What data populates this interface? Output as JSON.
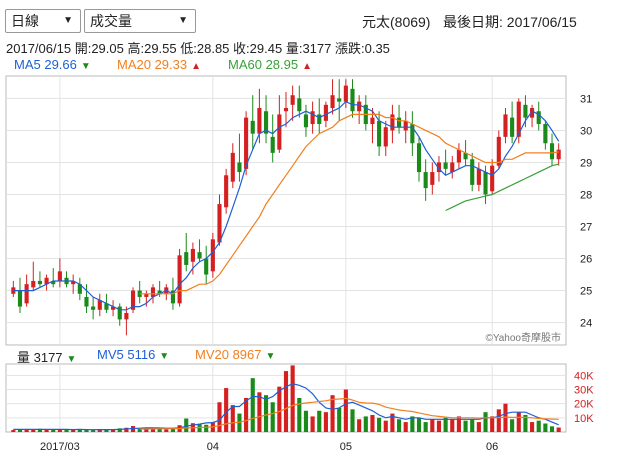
{
  "controls": {
    "period_select": {
      "value": "日線"
    },
    "indicator_select": {
      "value": "成交量"
    }
  },
  "header": {
    "stock": "元太(8069)",
    "last_date_label": "最後日期: 2017/06/15"
  },
  "quote": {
    "date": "2017/06/15",
    "open": "開:29.05",
    "high": "高:29.55",
    "low": "低:28.85",
    "close": "收:29.45",
    "volume": "量:3177",
    "change": "漲跌:0.35"
  },
  "ma_legend": {
    "ma5": {
      "text": "MA5 29.66",
      "arrow": "▼",
      "color": "#1f5fd6",
      "arrow_color": "#1a8a1a"
    },
    "ma20": {
      "text": "MA20 29.33",
      "arrow": "▲",
      "color": "#f08020",
      "arrow_color": "#d42020"
    },
    "ma60": {
      "text": "MA60 28.95",
      "arrow": "▲",
      "color": "#3aa03a",
      "arrow_color": "#d42020"
    }
  },
  "vol_legend": {
    "vol": {
      "text": "量 3177",
      "arrow": "▼",
      "color": "#222",
      "arrow_color": "#1a8a1a"
    },
    "mv5": {
      "text": "MV5 5116",
      "arrow": "▼",
      "color": "#1f5fd6",
      "arrow_color": "#1a8a1a"
    },
    "mv20": {
      "text": "MV20 8967",
      "arrow": "▼",
      "color": "#f08020",
      "arrow_color": "#1a8a1a"
    }
  },
  "watermark": "©Yahoo奇摩股市",
  "colors": {
    "up": "#d42020",
    "down": "#1a8a1a",
    "ma5": "#1f5fd6",
    "ma20": "#f08020",
    "ma60": "#3aa03a",
    "grid": "#e3e3e3",
    "vol_axis": "#d42020"
  },
  "chart_data": {
    "type": "candlestick",
    "price_axis": {
      "ticks": [
        24,
        25,
        26,
        27,
        28,
        29,
        30,
        31
      ],
      "ylim": [
        23.3,
        31.7
      ]
    },
    "volume_axis": {
      "ticks": [
        "10K",
        "20K",
        "30K",
        "40K"
      ],
      "values": [
        10000,
        20000,
        30000,
        40000
      ],
      "ylim": [
        0,
        48000
      ]
    },
    "x_tick_labels": [
      {
        "index": 7,
        "label": "2017/03"
      },
      {
        "index": 30,
        "label": "04"
      },
      {
        "index": 50,
        "label": "05"
      },
      {
        "index": 72,
        "label": "06"
      }
    ],
    "candles": [
      [
        24.9,
        25.3,
        24.8,
        25.1
      ],
      [
        25.0,
        25.4,
        24.3,
        24.5
      ],
      [
        24.6,
        25.5,
        24.5,
        25.2
      ],
      [
        25.1,
        25.9,
        25.0,
        25.3
      ],
      [
        25.3,
        25.6,
        25.1,
        25.2
      ],
      [
        25.2,
        25.5,
        25.0,
        25.4
      ],
      [
        25.3,
        25.7,
        25.1,
        25.2
      ],
      [
        25.3,
        26.0,
        25.1,
        25.6
      ],
      [
        25.4,
        25.6,
        25.1,
        25.2
      ],
      [
        25.2,
        25.5,
        24.9,
        25.3
      ],
      [
        25.2,
        25.4,
        24.7,
        24.9
      ],
      [
        24.8,
        25.2,
        24.3,
        24.5
      ],
      [
        24.5,
        24.8,
        24.1,
        24.4
      ],
      [
        24.4,
        24.9,
        24.2,
        24.7
      ],
      [
        24.6,
        24.9,
        24.3,
        24.4
      ],
      [
        24.4,
        24.7,
        24.2,
        24.5
      ],
      [
        24.5,
        24.6,
        23.9,
        24.1
      ],
      [
        24.1,
        24.5,
        23.6,
        24.3
      ],
      [
        24.4,
        25.1,
        24.3,
        25.0
      ],
      [
        25.0,
        25.3,
        24.6,
        24.8
      ],
      [
        24.8,
        25.0,
        24.5,
        24.9
      ],
      [
        24.8,
        25.2,
        24.6,
        25.1
      ],
      [
        25.0,
        25.3,
        24.8,
        24.9
      ],
      [
        24.9,
        25.2,
        24.7,
        25.1
      ],
      [
        25.0,
        25.4,
        24.4,
        24.6
      ],
      [
        24.6,
        26.3,
        24.5,
        26.1
      ],
      [
        26.2,
        26.8,
        25.6,
        25.8
      ],
      [
        25.9,
        26.5,
        25.5,
        26.3
      ],
      [
        26.2,
        26.6,
        25.9,
        26.0
      ],
      [
        26.0,
        26.4,
        25.2,
        25.5
      ],
      [
        25.6,
        26.8,
        25.4,
        26.6
      ],
      [
        26.5,
        28.0,
        26.4,
        27.7
      ],
      [
        27.6,
        28.8,
        27.4,
        28.6
      ],
      [
        28.4,
        29.6,
        28.2,
        29.3
      ],
      [
        29.0,
        29.9,
        28.4,
        28.7
      ],
      [
        28.8,
        30.6,
        28.6,
        30.4
      ],
      [
        30.3,
        31.1,
        29.4,
        29.9
      ],
      [
        29.9,
        31.3,
        29.6,
        30.7
      ],
      [
        30.6,
        31.1,
        29.6,
        29.9
      ],
      [
        29.8,
        30.5,
        29.0,
        29.3
      ],
      [
        29.4,
        31.1,
        29.3,
        30.5
      ],
      [
        30.6,
        31.2,
        30.1,
        30.7
      ],
      [
        30.8,
        31.4,
        30.3,
        31.1
      ],
      [
        31.0,
        31.4,
        30.4,
        30.6
      ],
      [
        30.5,
        30.8,
        29.8,
        30.1
      ],
      [
        30.2,
        30.9,
        29.9,
        30.6
      ],
      [
        30.5,
        31.0,
        29.9,
        30.2
      ],
      [
        30.3,
        30.9,
        30.1,
        30.8
      ],
      [
        30.7,
        31.6,
        30.5,
        31.1
      ],
      [
        31.0,
        31.6,
        30.3,
        30.9
      ],
      [
        30.9,
        31.6,
        30.7,
        31.4
      ],
      [
        31.3,
        31.6,
        30.4,
        30.6
      ],
      [
        30.6,
        31.1,
        30.2,
        30.9
      ],
      [
        30.8,
        31.1,
        30.0,
        30.2
      ],
      [
        30.2,
        30.7,
        29.6,
        30.4
      ],
      [
        30.3,
        30.6,
        29.2,
        29.5
      ],
      [
        29.5,
        30.3,
        29.2,
        30.1
      ],
      [
        30.0,
        30.8,
        29.6,
        30.5
      ],
      [
        30.4,
        30.8,
        29.9,
        30.1
      ],
      [
        30.0,
        30.6,
        29.6,
        30.3
      ],
      [
        30.2,
        30.6,
        29.2,
        29.6
      ],
      [
        29.6,
        29.8,
        28.4,
        28.7
      ],
      [
        28.7,
        29.1,
        27.8,
        28.2
      ],
      [
        28.3,
        29.0,
        28.0,
        28.7
      ],
      [
        28.7,
        29.2,
        28.4,
        29.0
      ],
      [
        29.0,
        29.4,
        28.6,
        28.8
      ],
      [
        28.7,
        29.2,
        28.5,
        29.0
      ],
      [
        29.0,
        29.6,
        28.8,
        29.4
      ],
      [
        29.3,
        29.7,
        28.9,
        29.1
      ],
      [
        29.1,
        29.3,
        28.1,
        28.3
      ],
      [
        28.3,
        29.0,
        28.1,
        28.8
      ],
      [
        28.7,
        28.9,
        27.7,
        28.0
      ],
      [
        28.1,
        29.1,
        28.0,
        28.9
      ],
      [
        28.9,
        30.0,
        28.8,
        29.8
      ],
      [
        29.8,
        30.7,
        29.6,
        30.5
      ],
      [
        30.4,
        30.9,
        29.6,
        29.8
      ],
      [
        29.8,
        31.0,
        29.6,
        30.9
      ],
      [
        30.8,
        31.1,
        30.1,
        30.4
      ],
      [
        30.4,
        30.8,
        30.1,
        30.7
      ],
      [
        30.6,
        30.9,
        30.0,
        30.2
      ],
      [
        30.2,
        30.3,
        29.4,
        29.6
      ],
      [
        29.6,
        29.9,
        28.9,
        29.1
      ],
      [
        29.1,
        29.6,
        28.9,
        29.4
      ]
    ],
    "volumes": [
      1400,
      2100,
      1900,
      1700,
      2300,
      1500,
      1900,
      1800,
      1700,
      1600,
      1900,
      1500,
      1400,
      2100,
      1800,
      1600,
      2600,
      3000,
      4200,
      2300,
      2400,
      3000,
      2100,
      1900,
      2300,
      4800,
      9500,
      6200,
      5400,
      5100,
      7000,
      21000,
      31000,
      19000,
      13000,
      24000,
      38000,
      28000,
      26000,
      21000,
      32000,
      43000,
      47000,
      24000,
      15000,
      11000,
      15000,
      14000,
      26000,
      17000,
      30000,
      16000,
      9000,
      11000,
      12000,
      10000,
      8000,
      13000,
      9000,
      7000,
      11000,
      10000,
      7000,
      9000,
      8000,
      10000,
      9000,
      11000,
      8000,
      9000,
      7000,
      14000,
      11000,
      16000,
      20000,
      9000,
      14000,
      12000,
      7000,
      8000,
      6000,
      4000,
      3177
    ],
    "series": [
      {
        "name": "MA5",
        "values": [
          25.0,
          25.0,
          25.0,
          25.0,
          25.1,
          25.2,
          25.3,
          25.3,
          25.3,
          25.3,
          25.2,
          25.0,
          24.8,
          24.7,
          24.6,
          24.5,
          24.4,
          24.4,
          24.5,
          24.5,
          24.6,
          24.8,
          24.9,
          25.0,
          24.9,
          25.2,
          25.4,
          25.7,
          25.9,
          26.0,
          26.2,
          26.5,
          27.0,
          27.6,
          28.2,
          28.9,
          29.4,
          29.9,
          30.0,
          29.9,
          30.1,
          30.2,
          30.4,
          30.5,
          30.6,
          30.5,
          30.4,
          30.5,
          30.6,
          30.7,
          30.9,
          30.8,
          30.8,
          30.7,
          30.6,
          30.3,
          30.2,
          30.1,
          30.1,
          30.1,
          30.1,
          29.8,
          29.4,
          29.1,
          28.8,
          28.6,
          28.7,
          28.8,
          28.9,
          28.9,
          28.8,
          28.7,
          28.6,
          28.8,
          29.2,
          29.5,
          29.9,
          30.3,
          30.6,
          30.5,
          30.3,
          30.0,
          29.66
        ]
      },
      {
        "name": "MA20",
        "values": [
          null,
          null,
          null,
          null,
          null,
          null,
          null,
          null,
          null,
          null,
          null,
          null,
          null,
          null,
          null,
          null,
          null,
          null,
          null,
          24.9,
          24.9,
          24.9,
          24.9,
          24.9,
          24.9,
          25.0,
          25.0,
          25.1,
          25.2,
          25.2,
          25.3,
          25.5,
          25.8,
          26.1,
          26.4,
          26.7,
          27.0,
          27.3,
          27.7,
          28.0,
          28.3,
          28.6,
          28.9,
          29.2,
          29.5,
          29.7,
          29.9,
          30.0,
          30.1,
          30.3,
          30.4,
          30.5,
          30.5,
          30.5,
          30.5,
          30.5,
          30.4,
          30.4,
          30.3,
          30.3,
          30.2,
          30.1,
          30.0,
          29.9,
          29.8,
          29.6,
          29.5,
          29.4,
          29.3,
          29.2,
          29.1,
          29.0,
          29.0,
          29.0,
          29.1,
          29.1,
          29.2,
          29.3,
          29.3,
          29.3,
          29.3,
          29.3,
          29.33
        ]
      },
      {
        "name": "MA60",
        "values": [
          null,
          null,
          null,
          null,
          null,
          null,
          null,
          null,
          null,
          null,
          null,
          null,
          null,
          null,
          null,
          null,
          null,
          null,
          null,
          null,
          null,
          null,
          null,
          null,
          null,
          null,
          null,
          null,
          null,
          null,
          null,
          null,
          null,
          null,
          null,
          null,
          null,
          null,
          null,
          null,
          null,
          null,
          null,
          null,
          null,
          null,
          null,
          null,
          null,
          null,
          null,
          null,
          null,
          null,
          null,
          null,
          null,
          null,
          null,
          null,
          null,
          null,
          null,
          null,
          null,
          27.5,
          27.6,
          27.7,
          27.8,
          27.85,
          27.9,
          27.95,
          28.0,
          28.1,
          28.2,
          28.3,
          28.4,
          28.5,
          28.6,
          28.7,
          28.8,
          28.9,
          28.95
        ]
      },
      {
        "name": "MV5",
        "values": [
          1800,
          1800,
          1800,
          1800,
          1900,
          1800,
          1800,
          1800,
          1800,
          1700,
          1800,
          1700,
          1600,
          1700,
          1700,
          1700,
          1800,
          2100,
          2500,
          2700,
          2900,
          3000,
          2800,
          2700,
          2700,
          3000,
          4100,
          4900,
          5600,
          6400,
          6600,
          8300,
          14000,
          18000,
          18000,
          22000,
          25000,
          25000,
          23000,
          25000,
          29000,
          32000,
          34000,
          33000,
          31000,
          27000,
          21000,
          17000,
          16000,
          17000,
          20000,
          21000,
          19000,
          17000,
          15000,
          12000,
          10000,
          11000,
          10000,
          9000,
          10000,
          10000,
          9000,
          9000,
          9000,
          9000,
          9000,
          9000,
          9000,
          9000,
          9000,
          10000,
          10000,
          11000,
          13000,
          14000,
          14000,
          14000,
          12000,
          10000,
          9000,
          7000,
          5116
        ]
      },
      {
        "name": "MV20",
        "values": [
          null,
          null,
          null,
          null,
          null,
          null,
          null,
          null,
          null,
          null,
          null,
          null,
          null,
          null,
          null,
          null,
          null,
          null,
          null,
          2100,
          2150,
          2200,
          2250,
          2300,
          2350,
          2500,
          2800,
          3000,
          3200,
          3400,
          3600,
          4500,
          5700,
          6500,
          7000,
          8000,
          9600,
          10800,
          12000,
          13000,
          14500,
          16500,
          18700,
          19800,
          20500,
          21000,
          21500,
          22000,
          23000,
          23300,
          23700,
          22500,
          21000,
          20500,
          20400,
          19500,
          17500,
          16500,
          15500,
          15000,
          14500,
          13500,
          12500,
          11500,
          11000,
          10500,
          10000,
          10000,
          10000,
          10000,
          9800,
          10000,
          10000,
          10200,
          10500,
          10300,
          10400,
          10300,
          10000,
          9500,
          9300,
          9100,
          8967
        ]
      }
    ]
  }
}
